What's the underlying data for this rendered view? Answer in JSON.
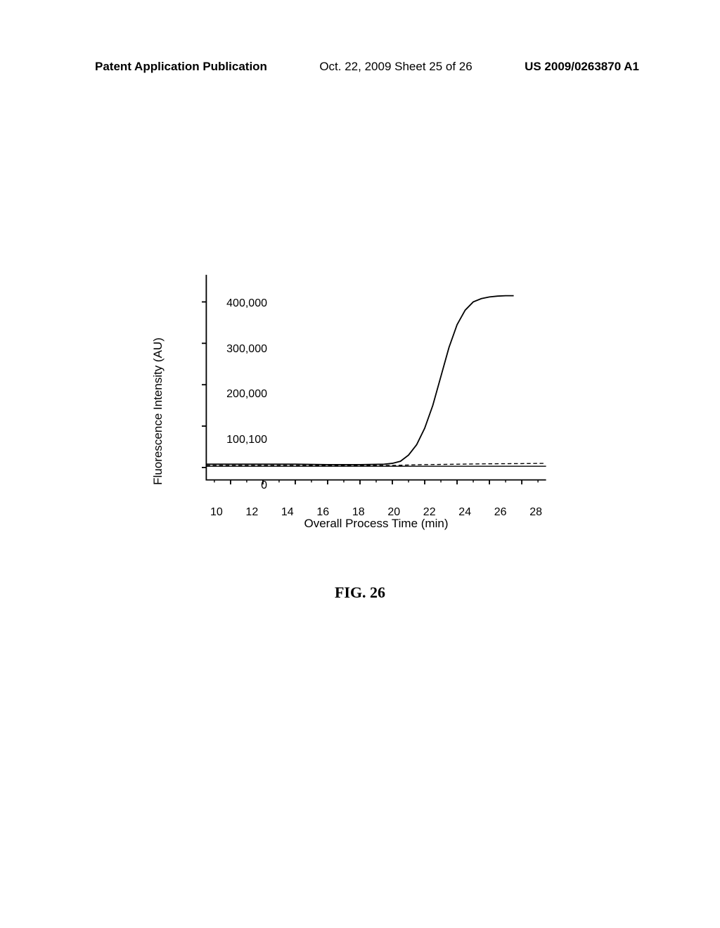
{
  "header": {
    "left": "Patent Application Publication",
    "center": "Oct. 22, 2009  Sheet 25 of 26",
    "right": "US 2009/0263870 A1"
  },
  "chart": {
    "type": "line",
    "y_label": "Fluorescence Intensity (AU)",
    "x_label": "Overall Process Time (min)",
    "y_ticks": [
      {
        "value": 0,
        "label": "0"
      },
      {
        "value": 100000,
        "label": "100,100"
      },
      {
        "value": 200000,
        "label": "200,000"
      },
      {
        "value": 300000,
        "label": "300,000"
      },
      {
        "value": 400000,
        "label": "400,000"
      }
    ],
    "x_ticks": [
      {
        "value": 10,
        "label": "10"
      },
      {
        "value": 12,
        "label": "12"
      },
      {
        "value": 14,
        "label": "14"
      },
      {
        "value": 16,
        "label": "16"
      },
      {
        "value": 18,
        "label": "18"
      },
      {
        "value": 20,
        "label": "20"
      },
      {
        "value": 22,
        "label": "22"
      },
      {
        "value": 24,
        "label": "24"
      },
      {
        "value": 26,
        "label": "26"
      },
      {
        "value": 28,
        "label": "28"
      }
    ],
    "xlim": [
      8.5,
      29.5
    ],
    "ylim": [
      -30000,
      450000
    ],
    "series": {
      "main": {
        "color": "#000000",
        "line_width": 2,
        "data": [
          {
            "x": 8.5,
            "y": 8000
          },
          {
            "x": 10,
            "y": 8000
          },
          {
            "x": 12,
            "y": 8000
          },
          {
            "x": 14,
            "y": 8000
          },
          {
            "x": 16,
            "y": 7000
          },
          {
            "x": 18,
            "y": 7000
          },
          {
            "x": 19.5,
            "y": 8000
          },
          {
            "x": 20,
            "y": 10000
          },
          {
            "x": 20.5,
            "y": 15000
          },
          {
            "x": 21,
            "y": 30000
          },
          {
            "x": 21.5,
            "y": 55000
          },
          {
            "x": 22,
            "y": 95000
          },
          {
            "x": 22.5,
            "y": 150000
          },
          {
            "x": 23,
            "y": 220000
          },
          {
            "x": 23.5,
            "y": 290000
          },
          {
            "x": 24,
            "y": 345000
          },
          {
            "x": 24.5,
            "y": 380000
          },
          {
            "x": 25,
            "y": 400000
          },
          {
            "x": 25.5,
            "y": 408000
          },
          {
            "x": 26,
            "y": 412000
          },
          {
            "x": 26.5,
            "y": 414000
          },
          {
            "x": 27,
            "y": 415000
          },
          {
            "x": 27.5,
            "y": 415000
          }
        ]
      },
      "baseline_dash": {
        "color": "#000000",
        "line_width": 1.5,
        "dash": "6,4",
        "data": [
          {
            "x": 8.5,
            "y": 5000
          },
          {
            "x": 20,
            "y": 5000
          },
          {
            "x": 21,
            "y": 6000
          },
          {
            "x": 22,
            "y": 7000
          },
          {
            "x": 24,
            "y": 8000
          },
          {
            "x": 26,
            "y": 9000
          },
          {
            "x": 28,
            "y": 9500
          },
          {
            "x": 29.5,
            "y": 10000
          }
        ]
      },
      "baseline_solid": {
        "color": "#000000",
        "line_width": 1.5,
        "data": [
          {
            "x": 8.5,
            "y": 3000
          },
          {
            "x": 29.5,
            "y": 3000
          }
        ]
      }
    },
    "background_color": "#ffffff",
    "axis_color": "#000000",
    "tick_fontsize": 16,
    "label_fontsize": 17
  },
  "figure_label": "FIG. 26"
}
